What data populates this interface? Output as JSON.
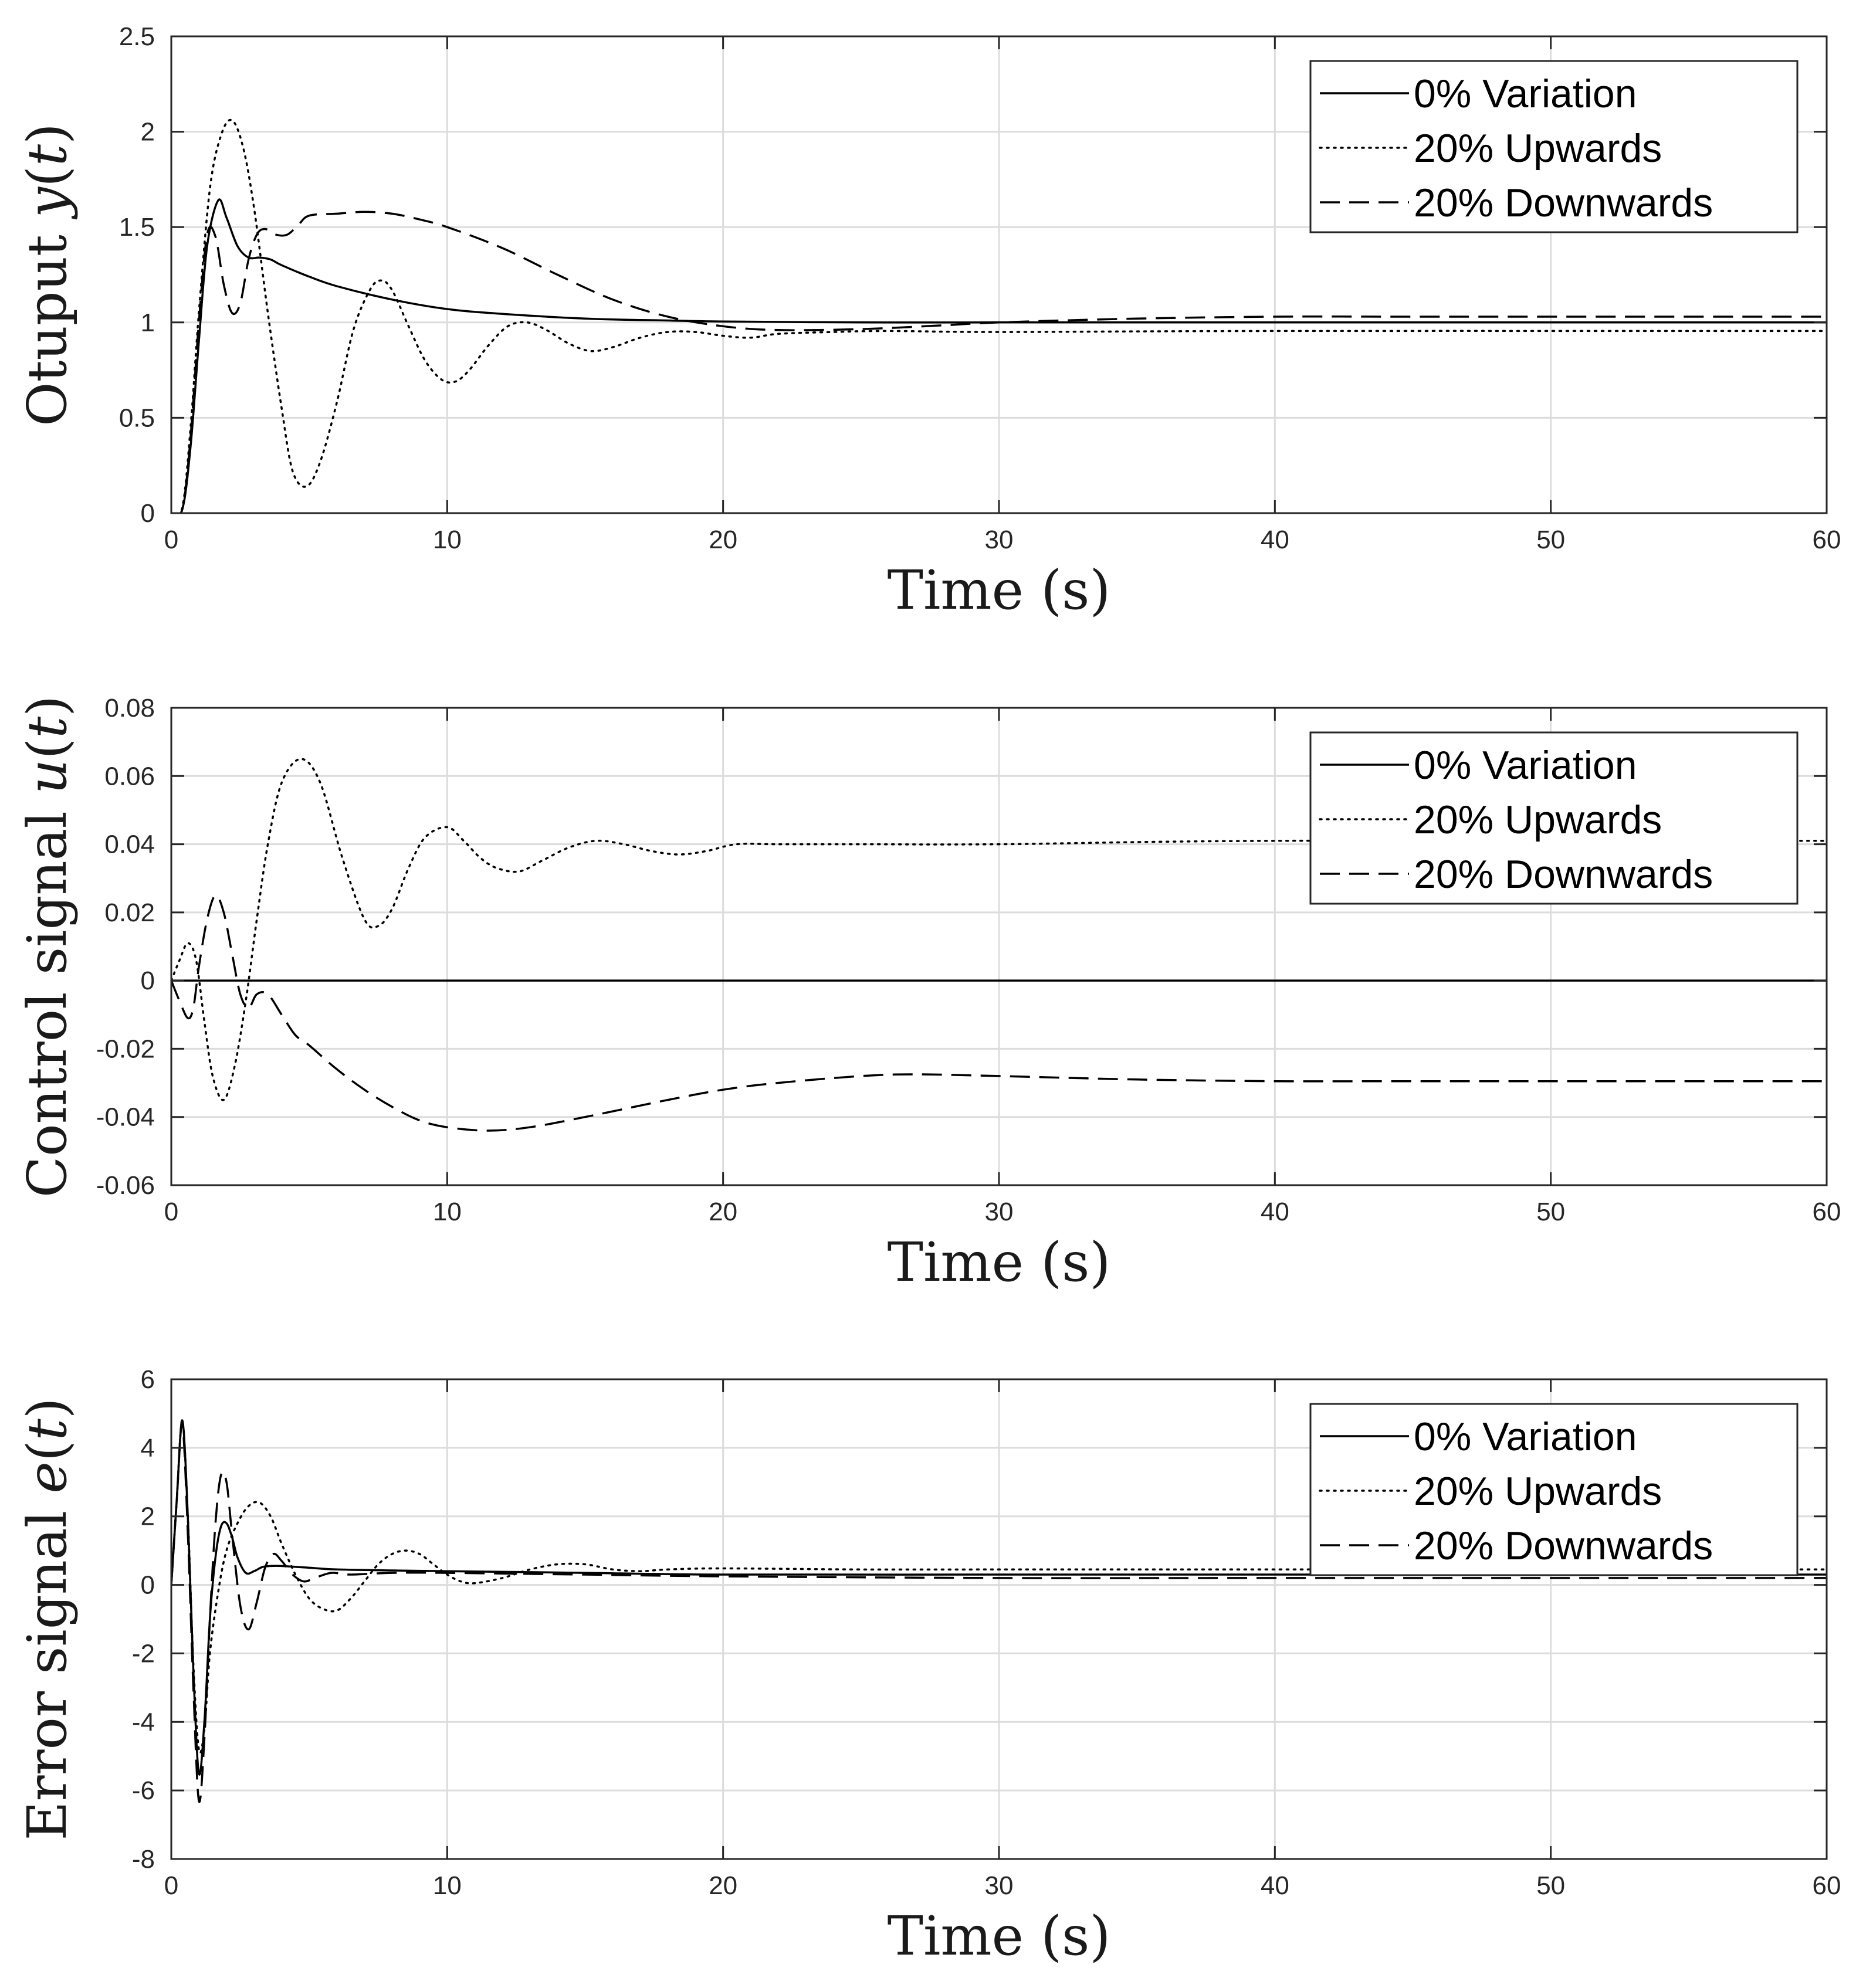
{
  "chart_data": [
    {
      "type": "line",
      "title": "",
      "xlabel": "Time (s)",
      "ylabel_parts": [
        "Otuput ",
        "y",
        "(",
        "t",
        ")"
      ],
      "xlim": [
        0,
        60
      ],
      "ylim": [
        0,
        2.5
      ],
      "xticks": [
        "0",
        "10",
        "20",
        "30",
        "40",
        "50",
        "60"
      ],
      "yticks": [
        "0",
        "0.5",
        "1",
        "1.5",
        "2",
        "2.5"
      ],
      "grid": true,
      "legend_position": "top-right",
      "series": [
        {
          "name": "0% Variation",
          "style": "solid",
          "x": [
            0,
            0.4,
            0.7,
            1.0,
            1.3,
            1.7,
            2.0,
            2.4,
            2.8,
            3.2,
            3.6,
            4.0,
            5.0,
            6.0,
            8.0,
            10.0,
            12.0,
            15.0,
            18.0,
            20.0,
            25.0,
            30.0,
            40.0,
            60.0
          ],
          "y": [
            0,
            0.02,
            0.35,
            0.9,
            1.4,
            1.64,
            1.55,
            1.4,
            1.34,
            1.34,
            1.33,
            1.3,
            1.24,
            1.19,
            1.12,
            1.07,
            1.045,
            1.02,
            1.01,
            1.005,
            1.0,
            1.0,
            1.0,
            1.0
          ]
        },
        {
          "name": "20% Upwards",
          "style": "dotted",
          "x": [
            0,
            0.4,
            0.7,
            1.0,
            1.4,
            1.8,
            2.2,
            2.6,
            3.0,
            3.5,
            4.0,
            4.4,
            4.9,
            5.4,
            6.0,
            6.6,
            7.2,
            7.6,
            8.0,
            8.6,
            9.2,
            9.8,
            10.3,
            10.8,
            11.5,
            12.2,
            12.9,
            13.6,
            14.4,
            15.2,
            16.0,
            17.0,
            18.0,
            19.0,
            20.0,
            21.0,
            22.0,
            24.0,
            26.0,
            30.0,
            40.0,
            60.0
          ],
          "y": [
            0,
            0.03,
            0.45,
            1.05,
            1.7,
            1.98,
            2.06,
            1.92,
            1.6,
            1.05,
            0.55,
            0.22,
            0.14,
            0.27,
            0.58,
            0.96,
            1.17,
            1.22,
            1.17,
            0.98,
            0.8,
            0.7,
            0.69,
            0.75,
            0.88,
            0.98,
            1.0,
            0.96,
            0.89,
            0.85,
            0.87,
            0.92,
            0.95,
            0.95,
            0.93,
            0.92,
            0.94,
            0.95,
            0.955,
            0.95,
            0.955,
            0.955
          ]
        },
        {
          "name": "20% Downwards",
          "style": "dashed",
          "x": [
            0,
            0.4,
            0.7,
            1.0,
            1.3,
            1.6,
            1.9,
            2.2,
            2.5,
            2.8,
            3.1,
            3.4,
            3.8,
            4.2,
            4.6,
            5.0,
            6.0,
            7.0,
            8.0,
            9.0,
            10.0,
            12.0,
            14.0,
            16.0,
            18.0,
            20.0,
            22.0,
            25.0,
            28.0,
            30.0,
            35.0,
            40.0,
            45.0,
            50.0,
            60.0
          ],
          "y": [
            0,
            0.02,
            0.4,
            1.0,
            1.46,
            1.45,
            1.2,
            1.05,
            1.1,
            1.33,
            1.46,
            1.49,
            1.46,
            1.46,
            1.51,
            1.56,
            1.57,
            1.58,
            1.57,
            1.54,
            1.5,
            1.39,
            1.25,
            1.12,
            1.03,
            0.98,
            0.96,
            0.965,
            0.985,
            1.0,
            1.02,
            1.03,
            1.03,
            1.03,
            1.03
          ]
        }
      ]
    },
    {
      "type": "line",
      "title": "",
      "xlabel": "Time (s)",
      "ylabel_parts": [
        "Control signal ",
        "u",
        "(",
        "t",
        ")"
      ],
      "xlim": [
        0,
        60
      ],
      "ylim": [
        -0.06,
        0.08
      ],
      "xticks": [
        "0",
        "10",
        "20",
        "30",
        "40",
        "50",
        "60"
      ],
      "yticks": [
        "-0.06",
        "-0.04",
        "-0.02",
        "0",
        "0.02",
        "0.04",
        "0.06",
        "0.08"
      ],
      "grid": true,
      "legend_position": "top-right",
      "series": [
        {
          "name": "0% Variation",
          "style": "solid",
          "x": [
            0,
            60
          ],
          "y": [
            0,
            0
          ]
        },
        {
          "name": "20% Upwards",
          "style": "dotted",
          "x": [
            0,
            0.3,
            0.6,
            0.9,
            1.2,
            1.5,
            1.9,
            2.3,
            2.7,
            3.1,
            3.5,
            4.0,
            4.7,
            5.4,
            6.2,
            7.0,
            7.5,
            8.0,
            8.6,
            9.2,
            10.0,
            10.6,
            11.2,
            11.8,
            12.6,
            13.4,
            14.4,
            15.4,
            16.4,
            17.4,
            18.4,
            19.4,
            20.5,
            22.0,
            25.0,
            30.0,
            40.0,
            60.0
          ],
          "y": [
            0,
            0.006,
            0.011,
            0.006,
            -0.012,
            -0.028,
            -0.035,
            -0.025,
            -0.006,
            0.018,
            0.04,
            0.058,
            0.065,
            0.058,
            0.036,
            0.018,
            0.016,
            0.021,
            0.033,
            0.042,
            0.045,
            0.041,
            0.036,
            0.033,
            0.032,
            0.035,
            0.039,
            0.041,
            0.04,
            0.038,
            0.037,
            0.038,
            0.04,
            0.04,
            0.04,
            0.04,
            0.041,
            0.041
          ]
        },
        {
          "name": "20% Downwards",
          "style": "dashed",
          "x": [
            0,
            0.3,
            0.6,
            0.8,
            1.0,
            1.3,
            1.6,
            1.9,
            2.2,
            2.5,
            2.8,
            3.1,
            3.5,
            4.0,
            4.5,
            5.0,
            6.0,
            7.0,
            8.0,
            9.0,
            10.0,
            11.5,
            13.0,
            15.0,
            18.0,
            20.0,
            22.0,
            25.0,
            27.0,
            30.0,
            35.0,
            40.0,
            45.0,
            50.0,
            60.0
          ],
          "y": [
            0,
            -0.006,
            -0.011,
            -0.008,
            0.004,
            0.018,
            0.025,
            0.02,
            0.008,
            -0.004,
            -0.008,
            -0.004,
            -0.004,
            -0.01,
            -0.016,
            -0.019,
            -0.026,
            -0.032,
            -0.037,
            -0.041,
            -0.043,
            -0.044,
            -0.043,
            -0.04,
            -0.035,
            -0.032,
            -0.03,
            -0.028,
            -0.0275,
            -0.028,
            -0.029,
            -0.0295,
            -0.0295,
            -0.0295,
            -0.0295
          ]
        }
      ]
    },
    {
      "type": "line",
      "title": "",
      "xlabel": "Time (s)",
      "ylabel_parts": [
        "Error signal ",
        "e",
        "(",
        "t",
        ")"
      ],
      "xlim": [
        0,
        60
      ],
      "ylim": [
        -8,
        6
      ],
      "xticks": [
        "0",
        "10",
        "20",
        "30",
        "40",
        "50",
        "60"
      ],
      "yticks": [
        "-8",
        "-6",
        "-4",
        "-2",
        "0",
        "2",
        "4",
        "6"
      ],
      "grid": true,
      "legend_position": "top-right",
      "series": [
        {
          "name": "0% Variation",
          "style": "solid",
          "x": [
            0,
            0.2,
            0.4,
            0.6,
            0.8,
            1.0,
            1.2,
            1.4,
            1.6,
            1.8,
            2.0,
            2.2,
            2.4,
            2.7,
            3.0,
            3.3,
            3.6,
            4.0,
            5.0,
            6.0,
            8.0,
            10.0,
            15.0,
            20.0,
            30.0,
            40.0,
            60.0
          ],
          "y": [
            0,
            2.5,
            4.8,
            2.0,
            -2.5,
            -5.5,
            -4.0,
            -1.0,
            0.8,
            1.7,
            1.8,
            1.4,
            0.8,
            0.35,
            0.4,
            0.52,
            0.55,
            0.55,
            0.5,
            0.45,
            0.42,
            0.4,
            0.35,
            0.3,
            0.3,
            0.3,
            0.3
          ]
        },
        {
          "name": "20% Upwards",
          "style": "dotted",
          "x": [
            0,
            0.2,
            0.4,
            0.6,
            0.8,
            1.0,
            1.2,
            1.4,
            1.7,
            2.0,
            2.4,
            2.8,
            3.2,
            3.6,
            4.0,
            4.5,
            5.0,
            5.5,
            6.0,
            6.5,
            7.0,
            7.5,
            8.0,
            8.5,
            9.0,
            9.5,
            10.0,
            10.5,
            11.0,
            12.0,
            13.0,
            14.0,
            15.0,
            16.0,
            17.0,
            18.0,
            20.0,
            25.0,
            30.0,
            40.0,
            60.0
          ],
          "y": [
            0,
            2.5,
            4.8,
            2.0,
            -2.3,
            -4.8,
            -4.2,
            -2.0,
            -0.2,
            1.0,
            1.8,
            2.3,
            2.4,
            2.0,
            1.2,
            0.3,
            -0.4,
            -0.7,
            -0.75,
            -0.4,
            0.1,
            0.6,
            0.9,
            1.0,
            0.9,
            0.6,
            0.3,
            0.1,
            0.05,
            0.2,
            0.45,
            0.6,
            0.6,
            0.45,
            0.4,
            0.45,
            0.48,
            0.45,
            0.45,
            0.45,
            0.45
          ]
        },
        {
          "name": "20% Downwards",
          "style": "dashed",
          "x": [
            0,
            0.2,
            0.4,
            0.6,
            0.8,
            1.0,
            1.2,
            1.4,
            1.6,
            1.8,
            2.0,
            2.2,
            2.5,
            2.8,
            3.1,
            3.4,
            3.7,
            4.0,
            4.4,
            4.8,
            5.2,
            5.8,
            6.5,
            8.0,
            10.0,
            15.0,
            20.0,
            30.0,
            40.0,
            60.0
          ],
          "y": [
            0,
            2.5,
            4.7,
            1.5,
            -3.0,
            -6.3,
            -4.5,
            -1.0,
            1.8,
            3.2,
            3.0,
            1.5,
            -0.6,
            -1.3,
            -0.5,
            0.5,
            0.9,
            0.7,
            0.3,
            0.1,
            0.2,
            0.35,
            0.3,
            0.35,
            0.35,
            0.3,
            0.25,
            0.2,
            0.2,
            0.2
          ]
        }
      ]
    }
  ]
}
